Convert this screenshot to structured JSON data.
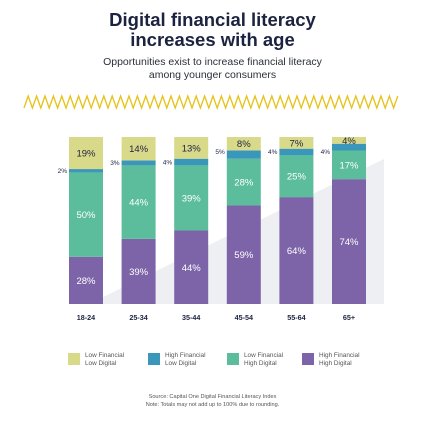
{
  "title_lines": [
    "Digital financial literacy",
    "increases with age"
  ],
  "subtitle_lines": [
    "Opportunities exist to increase financial literacy",
    "among younger consumers"
  ],
  "colors": {
    "low_financial_low_digital": "#d9d98a",
    "high_financial_low_digital": "#3b97b9",
    "low_financial_high_digital": "#5bbd9b",
    "high_financial_high_digital": "#7d64a8",
    "zigzag": "#e6c21a",
    "background_shape": "#eeeff2"
  },
  "chart_data": {
    "type": "bar",
    "stacked": true,
    "categories": [
      "18-24",
      "25-34",
      "35-44",
      "45-54",
      "55-64",
      "65+"
    ],
    "series": [
      {
        "name": "High Financial High Digital",
        "values": [
          28,
          39,
          44,
          59,
          64,
          74
        ]
      },
      {
        "name": "Low Financial High Digital",
        "values": [
          50,
          44,
          39,
          28,
          25,
          17
        ]
      },
      {
        "name": "High Financial Low Digital",
        "values": [
          2,
          3,
          4,
          5,
          4,
          4
        ]
      },
      {
        "name": "Low Financial Low Digital",
        "values": [
          19,
          14,
          13,
          8,
          7,
          4
        ]
      }
    ],
    "data_labels": [
      [
        "28%",
        "39%",
        "44%",
        "59%",
        "64%",
        "74%"
      ],
      [
        "50%",
        "44%",
        "39%",
        "28%",
        "25%",
        "17%"
      ],
      [
        "2%",
        "3%",
        "4%",
        "5%",
        "4%",
        "4%"
      ],
      [
        "19%",
        "14%",
        "13%",
        "8%",
        "7%",
        "4%"
      ]
    ],
    "ylim": [
      0,
      100
    ],
    "grid": false,
    "legend_position": "bottom"
  },
  "legend": [
    {
      "lines": [
        "Low Financial",
        "Low Digital"
      ],
      "color_key": "low_financial_low_digital"
    },
    {
      "lines": [
        "High Financial",
        "Low Digital"
      ],
      "color_key": "high_financial_low_digital"
    },
    {
      "lines": [
        "Low Financial",
        "High Digital"
      ],
      "color_key": "low_financial_high_digital"
    },
    {
      "lines": [
        "High Financial",
        "High Digital"
      ],
      "color_key": "high_financial_high_digital"
    }
  ],
  "source_lines": [
    "Source: Capital One Digital Financial Literacy Index",
    "Note: Totals may not add up to 100% due to rounding."
  ]
}
